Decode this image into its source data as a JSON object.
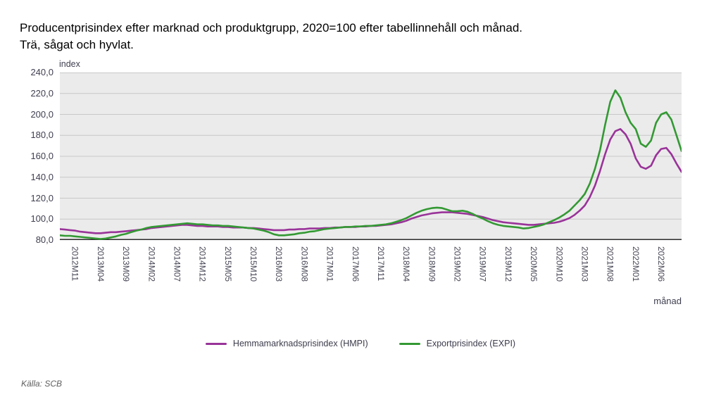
{
  "title_line1": "Producentprisindex efter marknad och produktgrupp, 2020=100 efter tabellinnehåll och månad.",
  "title_line2": "Trä, sågat och hyvlat.",
  "source": "Källa: SCB",
  "y_axis": {
    "unit_label": "index",
    "tick_labels": [
      "240,0",
      "220,0",
      "200,0",
      "180,0",
      "160,0",
      "140,0",
      "120,0",
      "100,0",
      "80,0"
    ],
    "min": 80,
    "max": 240,
    "step": 20
  },
  "x_axis": {
    "unit_label": "månad",
    "tick_labels": [
      "2012M11",
      "2013M04",
      "2013M09",
      "2014M02",
      "2014M07",
      "2014M12",
      "2015M05",
      "2015M10",
      "2016M03",
      "2016M08",
      "2017M01",
      "2017M06",
      "2017M11",
      "2018M04",
      "2018M09",
      "2019M02",
      "2019M07",
      "2019M12",
      "2020M05",
      "2020M10",
      "2021M03",
      "2021M08",
      "2022M01",
      "2022M06"
    ],
    "tick_start_index": 3,
    "tick_every": 5
  },
  "legend": [
    {
      "label": "Hemmamarknadsprisindex (HMPI)",
      "color": "#993399"
    },
    {
      "label": "Exportprisindex (EXPI)",
      "color": "#339933"
    }
  ],
  "colors": {
    "plot_background": "#ebebeb",
    "gridline": "#c8c8c8",
    "baseline": "#2b2b2b",
    "hmpi": "#993399",
    "expi": "#339933"
  },
  "chart_data": {
    "type": "line",
    "title": "Producentprisindex efter marknad och produktgrupp, 2020=100 efter tabellinnehåll och månad. Trä, sågat och hyvlat.",
    "xlabel": "månad",
    "ylabel": "index",
    "ylim": [
      80,
      240
    ],
    "grid": true,
    "legend_position": "bottom-center",
    "x_start": "2012M08",
    "x_end": "2022M10",
    "x_frequency": "monthly",
    "x_tick_labels": [
      "2012M11",
      "2013M04",
      "2013M09",
      "2014M02",
      "2014M07",
      "2014M12",
      "2015M05",
      "2015M10",
      "2016M03",
      "2016M08",
      "2017M01",
      "2017M06",
      "2017M11",
      "2018M04",
      "2018M09",
      "2019M02",
      "2019M07",
      "2019M12",
      "2020M05",
      "2020M10",
      "2021M03",
      "2021M08",
      "2022M01",
      "2022M06"
    ],
    "series": [
      {
        "name": "Hemmamarknadsprisindex (HMPI)",
        "color": "#993399",
        "values": [
          90.5,
          90,
          89.5,
          89,
          88,
          87.5,
          87,
          86.5,
          86.5,
          87,
          87.5,
          87.5,
          88,
          88.5,
          89,
          89.5,
          90,
          90.5,
          91.5,
          92,
          92.5,
          93,
          93.5,
          94,
          94.5,
          94.5,
          94,
          93.5,
          93.5,
          93,
          93,
          93,
          92.5,
          92.5,
          92,
          92,
          92,
          91.5,
          91.5,
          91,
          90.5,
          90,
          89.5,
          89.5,
          89.5,
          90,
          90,
          90.5,
          90.5,
          91,
          91,
          91,
          91.5,
          91.5,
          92,
          92,
          92.5,
          92.5,
          92.5,
          93,
          93,
          93.5,
          93.5,
          94,
          94.5,
          95,
          96,
          97,
          98.5,
          100.5,
          102,
          103.5,
          104.5,
          105.5,
          106,
          106.5,
          106.5,
          106.5,
          106,
          105.5,
          105,
          104,
          103,
          102,
          100.5,
          99,
          98,
          97,
          96.5,
          96,
          95.5,
          95,
          94.5,
          94.5,
          95,
          95.5,
          96,
          96.5,
          97.5,
          99,
          101,
          104,
          108,
          113,
          121,
          132,
          146,
          162,
          176,
          184,
          186,
          181,
          172,
          158,
          150,
          148,
          151,
          161,
          167,
          168,
          162,
          153,
          145
        ]
      },
      {
        "name": "Exportprisindex (EXPI)",
        "color": "#339933",
        "values": [
          84.5,
          84,
          84,
          83.5,
          83,
          82.5,
          82,
          81.5,
          81,
          81.5,
          82.5,
          83.5,
          85,
          86,
          87.5,
          89,
          90,
          91.5,
          92.5,
          93,
          93.5,
          94,
          94.5,
          95,
          95.5,
          96,
          95.5,
          95,
          95,
          94.5,
          94,
          94,
          93.5,
          93.5,
          93,
          92.5,
          92,
          91.5,
          91,
          90,
          89,
          87.5,
          85.5,
          84.5,
          84.5,
          85,
          85.5,
          86.5,
          87,
          88,
          88.5,
          89.5,
          90.5,
          91,
          91.5,
          92,
          92.5,
          92.5,
          93,
          93,
          93.5,
          93.5,
          94,
          94.5,
          95,
          96,
          97.5,
          99,
          101,
          103.5,
          106,
          108,
          109.5,
          110.5,
          111,
          110.5,
          109,
          107.5,
          107.5,
          108,
          107,
          105,
          102.5,
          100.5,
          98,
          96,
          94.5,
          93.5,
          93,
          92.5,
          92,
          91,
          91.5,
          92.5,
          93.5,
          95,
          97,
          99,
          101.5,
          104.5,
          108,
          113,
          118,
          124,
          134,
          148,
          166,
          190,
          212,
          223,
          216,
          202,
          192,
          186,
          172,
          169,
          175,
          192,
          200,
          202,
          195,
          180,
          165
        ]
      }
    ]
  }
}
